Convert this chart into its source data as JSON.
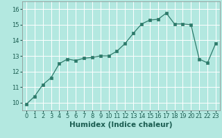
{
  "x": [
    0,
    1,
    2,
    3,
    4,
    5,
    6,
    7,
    8,
    9,
    10,
    11,
    12,
    13,
    14,
    15,
    16,
    17,
    18,
    19,
    20,
    21,
    22,
    23
  ],
  "y": [
    9.9,
    10.4,
    11.15,
    11.6,
    12.5,
    12.8,
    12.7,
    12.85,
    12.9,
    13.0,
    13.0,
    13.3,
    13.8,
    14.45,
    15.05,
    15.3,
    15.35,
    15.75,
    15.05,
    15.05,
    15.0,
    12.8,
    12.55,
    13.8
  ],
  "xlabel": "Humidex (Indice chaleur)",
  "xlim": [
    -0.5,
    23.5
  ],
  "ylim": [
    9.5,
    16.5
  ],
  "yticks": [
    10,
    11,
    12,
    13,
    14,
    15,
    16
  ],
  "xticks": [
    0,
    1,
    2,
    3,
    4,
    5,
    6,
    7,
    8,
    9,
    10,
    11,
    12,
    13,
    14,
    15,
    16,
    17,
    18,
    19,
    20,
    21,
    22,
    23
  ],
  "line_color": "#2d7a6a",
  "marker_color": "#2d7a6a",
  "bg_color": "#b3e8e0",
  "grid_color": "#ffffff",
  "label_color": "#1a5c50",
  "label_fontsize": 7.5,
  "tick_fontsize": 6.0
}
